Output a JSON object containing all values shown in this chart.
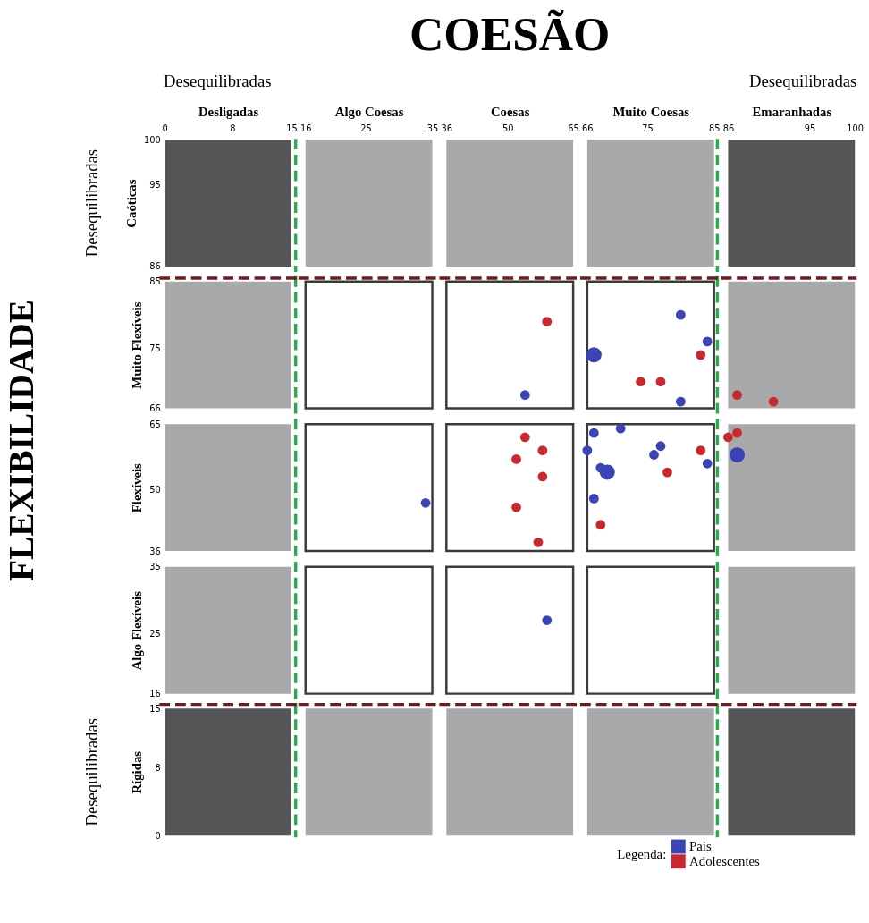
{
  "chart_data": [
    {
      "type": "bubble",
      "xlim": [
        0,
        15
      ],
      "ylim": [
        86,
        100
      ],
      "xticks": [
        0,
        8,
        15
      ],
      "yticks": [
        86,
        95,
        100
      ],
      "xlabel": "Desligadas",
      "ylabel": "Caóticas",
      "annotations": [
        "COESÃO",
        "FLEXIBILIDADE",
        "Desequilibradas",
        "Desequilibradas",
        "Desequilibradas",
        "Desequilibradas"
      ],
      "ref_lines": [
        {
          "axis": "x",
          "value": 15.5,
          "color": "#2ea84f",
          "line_style": "dashed"
        }
      ]
    },
    {
      "type": "bubble",
      "xlim": [
        16,
        35
      ],
      "ylim": [
        86,
        100
      ],
      "xticks": [
        16,
        25,
        35
      ],
      "xlabel": "Algo Coesas",
      "tick_labels": "x"
    },
    {
      "type": "bubble",
      "xlim": [
        36,
        65
      ],
      "ylim": [
        86,
        100
      ],
      "xticks": [
        36,
        50,
        65
      ],
      "xlabel": "Coesas",
      "tick_labels": "x"
    },
    {
      "type": "bubble",
      "xlim": [
        66,
        85
      ],
      "ylim": [
        86,
        100
      ],
      "xticks": [
        66,
        75,
        85
      ],
      "xlabel": "Muito Coesas",
      "tick_labels": "x",
      "ref_lines": [
        {
          "axis": "x",
          "value": 85.5,
          "color": "#2ea84f",
          "line_style": "dashed"
        }
      ]
    },
    {
      "type": "bubble",
      "xlim": [
        86,
        100
      ],
      "ylim": [
        86,
        100
      ],
      "xticks": [
        86,
        95,
        100
      ],
      "xlabel": "Emaranhadas",
      "tick_labels": "x"
    },
    {
      "type": "bubble",
      "xlim": [
        0,
        15
      ],
      "ylim": [
        66,
        85
      ],
      "yticks": [
        66,
        75,
        85
      ],
      "ylabel": "Muito Flexíveis",
      "tick_labels": "y",
      "ref_lines": [
        {
          "axis": "y",
          "value": 85.5,
          "color": "#6e1a22",
          "line_style": "dashed"
        }
      ]
    },
    {
      "type": "bubble",
      "xlim": [
        16,
        35
      ],
      "ylim": [
        66,
        85
      ],
      "tick_labels": false
    },
    {
      "type": "scatter",
      "xlim": [
        36,
        65
      ],
      "ylim": [
        66,
        85
      ],
      "tick_labels": false,
      "legend_title": "Legenda:",
      "legend": "bottom right",
      "series": [
        {
          "name": "Pais",
          "color": "#3a44b5",
          "x": [
            54
          ],
          "values": [
            68
          ]
        },
        {
          "name": "Adolescentes",
          "color": "#c62a30",
          "x": [
            59
          ],
          "values": [
            79
          ]
        }
      ]
    },
    {
      "type": "bubble",
      "xlim": [
        66,
        85
      ],
      "ylim": [
        66,
        85
      ],
      "tick_labels": false,
      "series": [
        {
          "color": "#3a44b5",
          "x": [
            67,
            80,
            84,
            80
          ],
          "values": [
            74,
            80,
            76,
            67
          ],
          "sizes": [
            1,
            0.4,
            0.4,
            0.4
          ]
        },
        {
          "color": "#c62a30",
          "x": [
            83,
            74,
            77
          ],
          "values": [
            74,
            70,
            70
          ],
          "sizes": [
            0.4,
            0.4,
            0.4
          ]
        }
      ]
    },
    {
      "type": "scatter",
      "xlim": [
        86,
        100
      ],
      "ylim": [
        66,
        85
      ],
      "tick_labels": false,
      "series": [
        {
          "color": "#c62a30",
          "x": [
            87,
            91
          ],
          "values": [
            68,
            67
          ]
        }
      ]
    },
    {
      "type": "bubble",
      "xlim": [
        0,
        15
      ],
      "ylim": [
        36,
        65
      ],
      "yticks": [
        36,
        50,
        65
      ],
      "ylabel": "Flexíveis",
      "tick_labels": "y"
    },
    {
      "type": "scatter",
      "xlim": [
        16,
        35
      ],
      "ylim": [
        36,
        65
      ],
      "tick_labels": false,
      "series": [
        {
          "color": "#3a44b5",
          "x": [
            34
          ],
          "values": [
            47
          ]
        }
      ]
    },
    {
      "type": "scatter",
      "xlim": [
        36,
        65
      ],
      "ylim": [
        36,
        65
      ],
      "tick_labels": false,
      "series": [
        {
          "color": "#c62a30",
          "x": [
            54,
            58,
            52,
            58,
            52,
            57
          ],
          "values": [
            62,
            59,
            57,
            53,
            46,
            38
          ]
        }
      ]
    },
    {
      "type": "bubble",
      "xlim": [
        66,
        85
      ],
      "ylim": [
        36,
        65
      ],
      "tick_labels": false,
      "series": [
        {
          "color": "#3a44b5",
          "x": [
            67,
            71,
            66,
            77,
            76,
            84,
            68,
            69,
            67
          ],
          "values": [
            63,
            64,
            59,
            60,
            58,
            56,
            55,
            54,
            48
          ],
          "sizes": [
            0.4,
            0.4,
            0.4,
            0.4,
            0.4,
            0.4,
            0.4,
            1,
            0.4
          ]
        },
        {
          "color": "#c62a30",
          "x": [
            83,
            78,
            68
          ],
          "values": [
            59,
            54,
            42
          ],
          "sizes": [
            0.4,
            0.4,
            0.4
          ]
        }
      ]
    },
    {
      "type": "bubble",
      "xlim": [
        86,
        100
      ],
      "ylim": [
        36,
        65
      ],
      "tick_labels": false,
      "series": [
        {
          "color": "#3a44b5",
          "x": [
            87
          ],
          "values": [
            58
          ],
          "sizes": [
            1
          ]
        },
        {
          "color": "#c62a30",
          "x": [
            86,
            87
          ],
          "values": [
            62,
            63
          ],
          "sizes": [
            0.4,
            0.4
          ]
        }
      ]
    },
    {
      "type": "bubble",
      "xlim": [
        0,
        15
      ],
      "ylim": [
        16,
        35
      ],
      "yticks": [
        16,
        25,
        35
      ],
      "ylabel": "Algo Flexíveis",
      "tick_labels": "y"
    },
    {
      "type": "bubble",
      "xlim": [
        16,
        35
      ],
      "ylim": [
        16,
        35
      ],
      "tick_labels": false
    },
    {
      "type": "scatter",
      "xlim": [
        36,
        65
      ],
      "ylim": [
        16,
        35
      ],
      "tick_labels": false,
      "series": [
        {
          "color": "#3a44b5",
          "x": [
            59
          ],
          "values": [
            27
          ]
        }
      ]
    },
    {
      "type": "bubble",
      "xlim": [
        66,
        85
      ],
      "ylim": [
        16,
        35
      ],
      "tick_labels": false
    },
    {
      "type": "bubble",
      "xlim": [
        86,
        100
      ],
      "ylim": [
        16,
        35
      ],
      "tick_labels": false
    },
    {
      "type": "bubble",
      "xlim": [
        0,
        15
      ],
      "ylim": [
        0,
        15
      ],
      "yticks": [
        0,
        8,
        15
      ],
      "ylabel": "Rígidas",
      "tick_labels": "y",
      "ref_lines": [
        {
          "axis": "y",
          "value": 15.5,
          "color": "#6e1a22",
          "line_style": "dashed"
        }
      ]
    },
    {
      "type": "bubble",
      "xlim": [
        16,
        35
      ],
      "ylim": [
        0,
        15
      ],
      "tick_labels": false
    },
    {
      "type": "bubble",
      "xlim": [
        36,
        65
      ],
      "ylim": [
        0,
        15
      ],
      "tick_labels": false
    },
    {
      "type": "bubble",
      "xlim": [
        66,
        85
      ],
      "ylim": [
        0,
        15
      ],
      "tick_labels": false
    },
    {
      "type": "bubble",
      "xlim": [
        86,
        100
      ],
      "ylim": [
        0,
        15
      ],
      "tick_labels": false
    }
  ]
}
